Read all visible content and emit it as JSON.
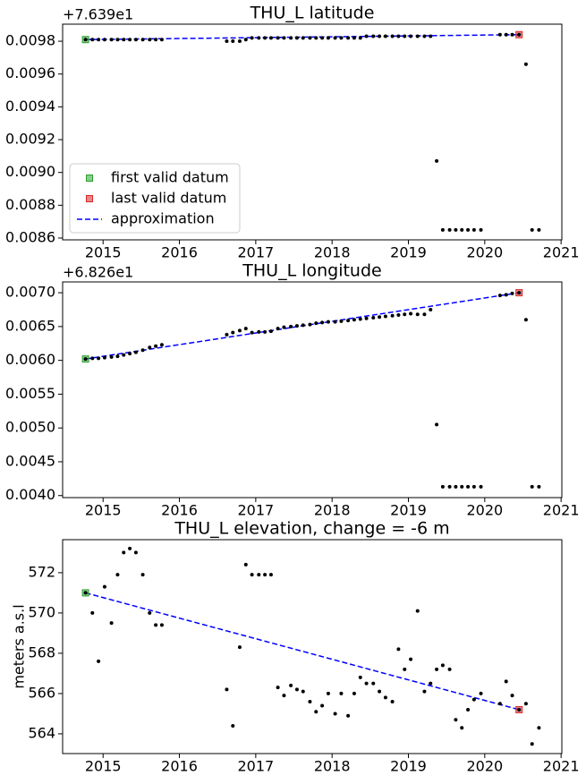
{
  "chart_data": [
    {
      "type": "scatter",
      "title": "THU_L latitude",
      "offset_text": "+7.639e1",
      "legend": "lower left",
      "xlim": [
        2014.47,
        2021.01
      ],
      "xticks": [
        2015,
        2016,
        2017,
        2018,
        2019,
        2020,
        2021
      ],
      "ylim": [
        0.008589,
        0.009904
      ],
      "yticks": [
        0.0086,
        0.0088,
        {
          "value": 0.009,
          "label": "0.0090"
        },
        0.0092,
        0.0094,
        0.0096,
        0.0098
      ],
      "series": [
        {
          "mode": "markers",
          "color": "#000000",
          "x": [
            2014.77,
            2014.86,
            2014.94,
            2015.02,
            2015.11,
            2015.19,
            2015.27,
            2015.35,
            2015.43,
            2015.52,
            2015.61,
            2015.69,
            2015.77,
            2016.62,
            2016.7,
            2016.79,
            2016.87,
            2016.95,
            2017.04,
            2017.12,
            2017.2,
            2017.29,
            2017.37,
            2017.46,
            2017.54,
            2017.62,
            2017.71,
            2017.79,
            2017.87,
            2017.95,
            2018.04,
            2018.12,
            2018.21,
            2018.29,
            2018.37,
            2018.45,
            2018.54,
            2018.62,
            2018.7,
            2018.79,
            2018.87,
            2018.95,
            2019.03,
            2019.12,
            2019.21,
            2019.29,
            2019.37,
            2019.45,
            2019.54,
            2019.62,
            2019.7,
            2019.78,
            2019.86,
            2019.95,
            2020.2,
            2020.28,
            2020.36,
            2020.45,
            2020.54,
            2020.62,
            2020.71
          ],
          "values": [
            0.00981,
            0.00981,
            0.00981,
            0.00981,
            0.00981,
            0.00981,
            0.00981,
            0.00981,
            0.00981,
            0.00981,
            0.00981,
            0.00981,
            0.00981,
            0.0098,
            0.0098,
            0.0098,
            0.00981,
            0.00982,
            0.00982,
            0.00982,
            0.00982,
            0.00982,
            0.00982,
            0.00982,
            0.00982,
            0.00982,
            0.00982,
            0.00982,
            0.00982,
            0.00982,
            0.00982,
            0.00982,
            0.00982,
            0.00982,
            0.00982,
            0.00983,
            0.00983,
            0.00983,
            0.00983,
            0.00983,
            0.00983,
            0.00983,
            0.00983,
            0.00983,
            0.00983,
            0.00983,
            0.00907,
            0.00865,
            0.00865,
            0.00865,
            0.00865,
            0.00865,
            0.00865,
            0.00865,
            0.00984,
            0.00984,
            0.00984,
            0.00984,
            0.00966,
            0.00865,
            0.00865
          ]
        },
        {
          "name": "first valid datum",
          "mode": "square",
          "color": "#2ca02c",
          "x": [
            2014.77
          ],
          "values": [
            0.00981
          ]
        },
        {
          "name": "last valid datum",
          "mode": "square",
          "color": "#d62728",
          "x": [
            2020.45
          ],
          "values": [
            0.00984
          ]
        },
        {
          "name": "approximation",
          "mode": "dashed-line",
          "color": "#0000ff",
          "x": [
            2014.77,
            2020.45
          ],
          "values": [
            0.00981,
            0.00984
          ]
        }
      ]
    },
    {
      "type": "scatter",
      "title": "THU_L longitude",
      "offset_text": "+6.826e1",
      "xlim": [
        2014.47,
        2021.01
      ],
      "xticks": [
        2015,
        2016,
        2017,
        2018,
        2019,
        2020,
        2021
      ],
      "ylim": [
        0.00397,
        0.00716
      ],
      "yticks": [
        {
          "value": 0.004,
          "label": "0.0040"
        },
        0.0045,
        {
          "value": 0.005,
          "label": "0.0050"
        },
        0.0055,
        {
          "value": 0.006,
          "label": "0.0060"
        },
        0.0065,
        {
          "value": 0.007,
          "label": "0.0070"
        }
      ],
      "series": [
        {
          "mode": "markers",
          "color": "#000000",
          "x": [
            2014.77,
            2014.86,
            2014.94,
            2015.02,
            2015.11,
            2015.19,
            2015.27,
            2015.35,
            2015.43,
            2015.52,
            2015.61,
            2015.69,
            2015.77,
            2016.62,
            2016.7,
            2016.79,
            2016.87,
            2016.95,
            2017.04,
            2017.12,
            2017.2,
            2017.29,
            2017.37,
            2017.46,
            2017.54,
            2017.62,
            2017.71,
            2017.79,
            2017.87,
            2017.95,
            2018.04,
            2018.12,
            2018.21,
            2018.29,
            2018.37,
            2018.45,
            2018.54,
            2018.62,
            2018.7,
            2018.79,
            2018.87,
            2018.95,
            2019.03,
            2019.12,
            2019.21,
            2019.29,
            2019.37,
            2019.45,
            2019.54,
            2019.62,
            2019.7,
            2019.78,
            2019.86,
            2019.95,
            2020.2,
            2020.28,
            2020.36,
            2020.45,
            2020.54,
            2020.62,
            2020.71
          ],
          "values": [
            0.00602,
            0.00603,
            0.00603,
            0.00604,
            0.00605,
            0.00606,
            0.00608,
            0.0061,
            0.00612,
            0.00615,
            0.00619,
            0.00621,
            0.00623,
            0.00638,
            0.00641,
            0.00644,
            0.00647,
            0.00641,
            0.00642,
            0.00642,
            0.00643,
            0.00647,
            0.00649,
            0.0065,
            0.00651,
            0.00652,
            0.00653,
            0.00655,
            0.00656,
            0.00657,
            0.00657,
            0.00658,
            0.00659,
            0.0066,
            0.00661,
            0.00662,
            0.00663,
            0.00664,
            0.00665,
            0.00666,
            0.00667,
            0.00668,
            0.00669,
            0.00668,
            0.00668,
            0.00675,
            0.00505,
            0.00413,
            0.00413,
            0.00413,
            0.00413,
            0.00413,
            0.00413,
            0.00413,
            0.00696,
            0.00697,
            0.00699,
            0.007,
            0.0066,
            0.00413,
            0.00413
          ]
        },
        {
          "mode": "square",
          "color": "#2ca02c",
          "x": [
            2014.77
          ],
          "values": [
            0.00602
          ]
        },
        {
          "mode": "square",
          "color": "#d62728",
          "x": [
            2020.45
          ],
          "values": [
            0.007
          ]
        },
        {
          "mode": "dashed-line",
          "color": "#0000ff",
          "x": [
            2014.77,
            2020.45
          ],
          "values": [
            0.00602,
            0.007
          ]
        }
      ]
    },
    {
      "type": "scatter",
      "title": "THU_L elevation, change = -6 m",
      "y_label": "meters a.s.l",
      "xlim": [
        2014.47,
        2021.01
      ],
      "xticks": [
        2015,
        2016,
        2017,
        2018,
        2019,
        2020,
        2021
      ],
      "ylim": [
        563.02,
        573.64
      ],
      "yticks": [
        564,
        566,
        568,
        570,
        572
      ],
      "series": [
        {
          "mode": "markers",
          "color": "#000000",
          "x": [
            2014.77,
            2014.86,
            2014.94,
            2015.02,
            2015.11,
            2015.19,
            2015.27,
            2015.35,
            2015.43,
            2015.52,
            2015.61,
            2015.69,
            2015.77,
            2016.62,
            2016.7,
            2016.79,
            2016.87,
            2016.95,
            2017.04,
            2017.12,
            2017.2,
            2017.29,
            2017.37,
            2017.46,
            2017.54,
            2017.62,
            2017.71,
            2017.79,
            2017.87,
            2017.95,
            2018.04,
            2018.12,
            2018.21,
            2018.29,
            2018.37,
            2018.45,
            2018.54,
            2018.62,
            2018.7,
            2018.79,
            2018.87,
            2018.95,
            2019.03,
            2019.12,
            2019.21,
            2019.29,
            2019.37,
            2019.45,
            2019.54,
            2019.62,
            2019.7,
            2019.78,
            2019.86,
            2019.95,
            2020.2,
            2020.28,
            2020.36,
            2020.45,
            2020.54,
            2020.62,
            2020.71
          ],
          "values": [
            571.0,
            570.0,
            567.6,
            571.3,
            569.5,
            571.9,
            573.0,
            573.2,
            573.0,
            571.9,
            570.0,
            569.4,
            569.4,
            566.2,
            564.4,
            568.3,
            572.4,
            571.9,
            571.9,
            571.9,
            571.9,
            566.3,
            565.9,
            566.4,
            566.2,
            566.1,
            565.6,
            565.1,
            565.4,
            566.0,
            565.0,
            566.0,
            564.9,
            566.0,
            566.8,
            566.5,
            566.5,
            566.1,
            565.8,
            565.6,
            568.2,
            567.2,
            567.7,
            570.1,
            566.1,
            566.5,
            567.2,
            567.4,
            567.2,
            564.7,
            564.3,
            565.2,
            565.7,
            566.0,
            565.5,
            566.6,
            565.9,
            565.2,
            565.5,
            563.5,
            564.3
          ]
        },
        {
          "mode": "square",
          "color": "#2ca02c",
          "x": [
            2014.77
          ],
          "values": [
            571.0
          ]
        },
        {
          "mode": "square",
          "color": "#d62728",
          "x": [
            2020.45
          ],
          "values": [
            565.2
          ]
        },
        {
          "mode": "dashed-line",
          "color": "#0000ff",
          "x": [
            2014.77,
            2020.45
          ],
          "values": [
            571.0,
            565.2
          ]
        }
      ]
    }
  ]
}
